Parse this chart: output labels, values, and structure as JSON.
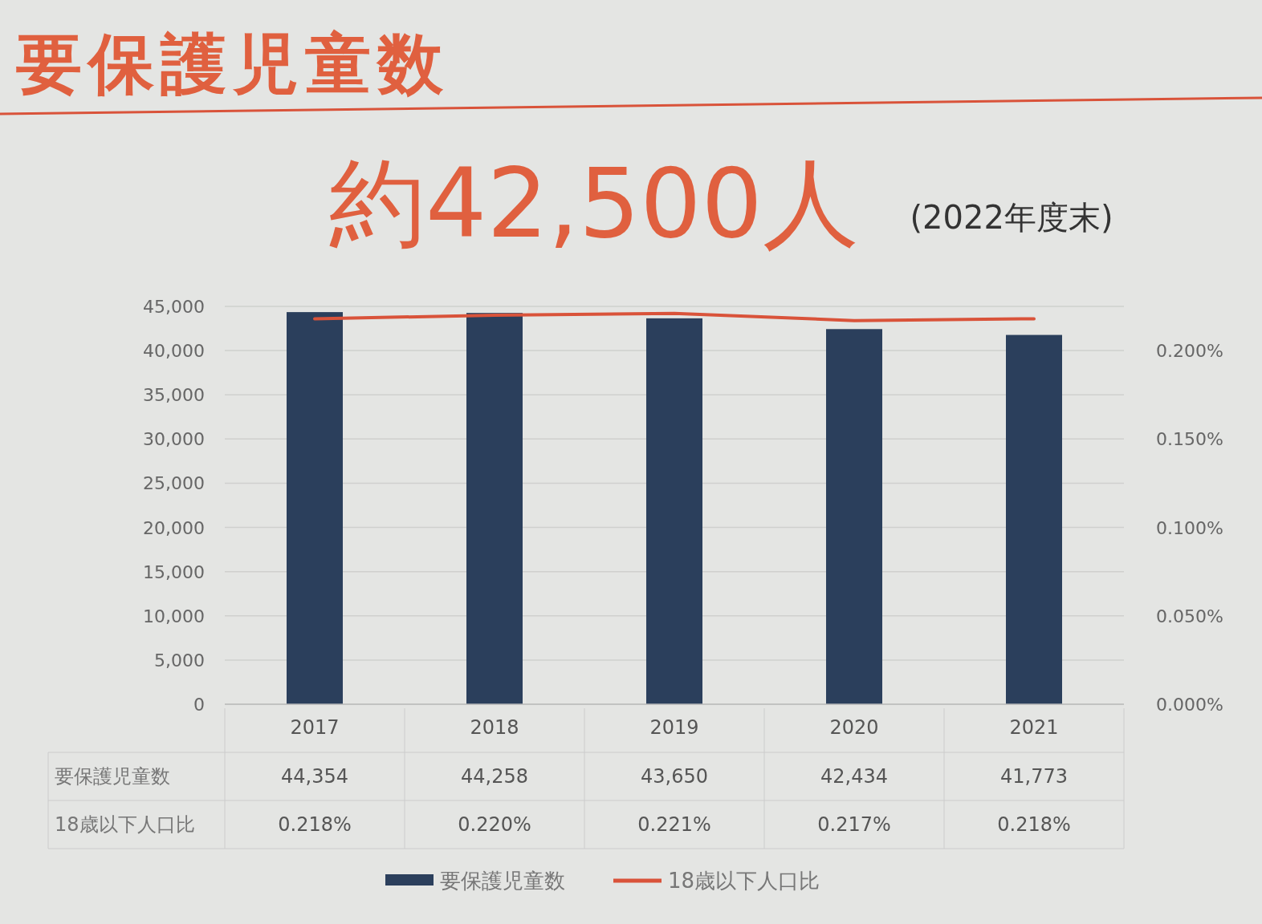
{
  "chart_data": {
    "type": "bar",
    "title": "要保護児童数",
    "subtitle": "約42,500人",
    "annotations": [
      "(2022年度末)"
    ],
    "categories": [
      "2017",
      "2018",
      "2019",
      "2020",
      "2021"
    ],
    "series": [
      {
        "name": "要保護児童数",
        "color": "#2b3f5c",
        "values": [
          44354,
          44258,
          43650,
          42434,
          41773
        ],
        "value_labels": [
          "44,354",
          "44,258",
          "43,650",
          "42,434",
          "41,773"
        ]
      },
      {
        "name": "18歳以下人口比",
        "type": "line",
        "axis": "y2",
        "color": "#d9533a",
        "values": [
          0.218,
          0.22,
          0.221,
          0.217,
          0.218
        ],
        "value_labels": [
          "0.218%",
          "0.220%",
          "0.221%",
          "0.217%",
          "0.218%"
        ]
      }
    ],
    "ylim": [
      0,
      45000
    ],
    "yticks": [
      0,
      {
        "value": 5000,
        "label": "5,000"
      },
      {
        "value": 10000,
        "label": "10,000"
      },
      {
        "value": 15000,
        "label": "15,000"
      },
      {
        "value": 20000,
        "label": "20,000"
      },
      {
        "value": 25000,
        "label": "25,000"
      },
      {
        "value": 30000,
        "label": "30,000"
      },
      {
        "value": 35000,
        "label": "35,000"
      },
      {
        "value": 40000,
        "label": "40,000"
      },
      {
        "value": 45000,
        "label": "45,000"
      }
    ],
    "y2lim": [
      0,
      0.225
    ],
    "y2ticks": [
      {
        "value": 0,
        "label": "0.000%"
      },
      {
        "value": 0.05,
        "label": "0.050%"
      },
      {
        "value": 0.1,
        "label": "0.100%"
      },
      {
        "value": 0.15,
        "label": "0.150%"
      },
      {
        "value": 0.2,
        "label": "0.200%"
      }
    ],
    "grid": "y",
    "legend": "bottom"
  }
}
